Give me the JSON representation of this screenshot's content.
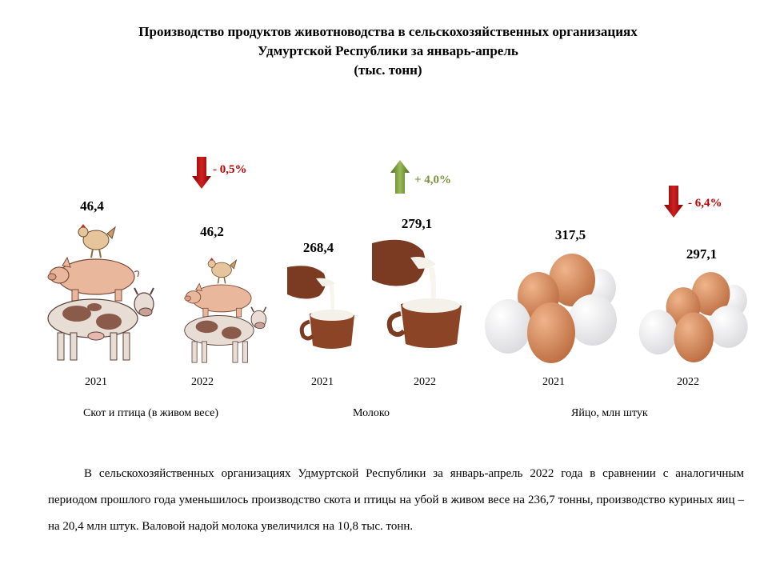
{
  "title": {
    "line1": "Производство продуктов животноводства в сельскохозяйственных организациях",
    "line2": "Удмуртской Республики за январь-апрель",
    "line3": "(тыс. тонн)"
  },
  "chart_data": {
    "type": "bar",
    "title": "Производство продуктов животноводства в сельскохозяйственных организациях Удмуртской Республики за январь-апрель (тыс. тонн)",
    "categories": [
      "2021",
      "2022"
    ],
    "groups": [
      {
        "name": "Скот и птица  (в живом весе)",
        "values": [
          46.4,
          46.2
        ],
        "labels": [
          "46,4",
          "46,2"
        ],
        "change": "- 0,5%",
        "direction": "down"
      },
      {
        "name": "Молоко",
        "values": [
          268.4,
          279.1
        ],
        "labels": [
          "268,4",
          "279,1"
        ],
        "change": "+ 4,0%",
        "direction": "up"
      },
      {
        "name": "Яйцо,  млн штук",
        "values": [
          317.5,
          297.1
        ],
        "labels": [
          "317,5",
          "297,1"
        ],
        "change": "- 6,4%",
        "direction": "down"
      }
    ]
  },
  "colors": {
    "down": "#c00000",
    "up": "#77933c",
    "pig": "#e9b89c",
    "cow_spot": "#8a5a4a",
    "egg_brown": "#c8784a",
    "milk_jug": "#7a3b22"
  },
  "icons": [
    "chicken-icon",
    "pig-icon",
    "cow-icon",
    "milk-jug-icon",
    "egg-icon",
    "arrow-down-icon",
    "arrow-up-icon"
  ],
  "paragraph": "В сельскохозяйственных организациях Удмуртской Республики за январь-апрель 2022 года в сравнении с аналогичным периодом прошлого года уменьшилось производство скота и птицы на убой в живом весе на 236,7 тонны, производство куриных яиц – на 20,4 млн штук. Валовой надой молока увеличился на 10,8 тыс. тонн."
}
